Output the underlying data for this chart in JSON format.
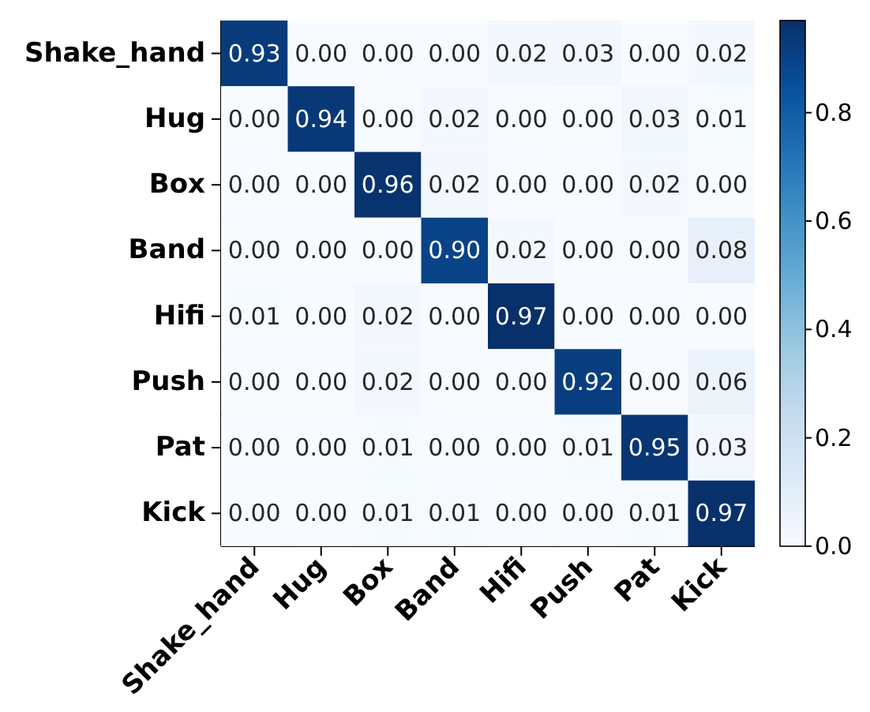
{
  "chart_data": {
    "type": "heatmap",
    "categories": [
      "Shake_hand",
      "Hug",
      "Box",
      "Band",
      "Hifi",
      "Push",
      "Pat",
      "Kick"
    ],
    "y_categories": [
      "Shake_hand",
      "Hug",
      "Box",
      "Band",
      "Hifi",
      "Push",
      "Pat",
      "Kick"
    ],
    "cells": [
      [
        0.93,
        0.0,
        0.0,
        0.0,
        0.02,
        0.03,
        0.0,
        0.02
      ],
      [
        0.0,
        0.94,
        0.0,
        0.02,
        0.0,
        0.0,
        0.03,
        0.01
      ],
      [
        0.0,
        0.0,
        0.96,
        0.02,
        0.0,
        0.0,
        0.02,
        0.0
      ],
      [
        0.0,
        0.0,
        0.0,
        0.9,
        0.02,
        0.0,
        0.0,
        0.08
      ],
      [
        0.01,
        0.0,
        0.02,
        0.0,
        0.97,
        0.0,
        0.0,
        0.0
      ],
      [
        0.0,
        0.0,
        0.02,
        0.0,
        0.0,
        0.92,
        0.0,
        0.06
      ],
      [
        0.0,
        0.0,
        0.01,
        0.0,
        0.0,
        0.01,
        0.95,
        0.03
      ],
      [
        0.0,
        0.0,
        0.01,
        0.01,
        0.0,
        0.0,
        0.01,
        0.97
      ]
    ],
    "clim": [
      0,
      0.97
    ],
    "cticks": [
      {
        "value": 0,
        "label": "0.0"
      },
      {
        "value": 0.2,
        "label": "0.2"
      },
      {
        "value": 0.4,
        "label": "0.4"
      },
      {
        "value": 0.6,
        "label": "0.6"
      },
      {
        "value": 0.8,
        "label": "0.8"
      }
    ],
    "cell_labels": [
      [
        "0.93",
        "0.00",
        "0.00",
        "0.00",
        "0.02",
        "0.03",
        "0.00",
        "0.02"
      ],
      [
        "0.00",
        "0.94",
        "0.00",
        "0.02",
        "0.00",
        "0.00",
        "0.03",
        "0.01"
      ],
      [
        "0.00",
        "0.00",
        "0.96",
        "0.02",
        "0.00",
        "0.00",
        "0.02",
        "0.00"
      ],
      [
        "0.00",
        "0.00",
        "0.00",
        "0.90",
        "0.02",
        "0.00",
        "0.00",
        "0.08"
      ],
      [
        "0.01",
        "0.00",
        "0.02",
        "0.00",
        "0.97",
        "0.00",
        "0.00",
        "0.00"
      ],
      [
        "0.00",
        "0.00",
        "0.02",
        "0.00",
        "0.00",
        "0.92",
        "0.00",
        "0.06"
      ],
      [
        "0.00",
        "0.00",
        "0.01",
        "0.00",
        "0.00",
        "0.01",
        "0.95",
        "0.03"
      ],
      [
        "0.00",
        "0.00",
        "0.01",
        "0.01",
        "0.00",
        "0.00",
        "0.01",
        "0.97"
      ]
    ]
  }
}
